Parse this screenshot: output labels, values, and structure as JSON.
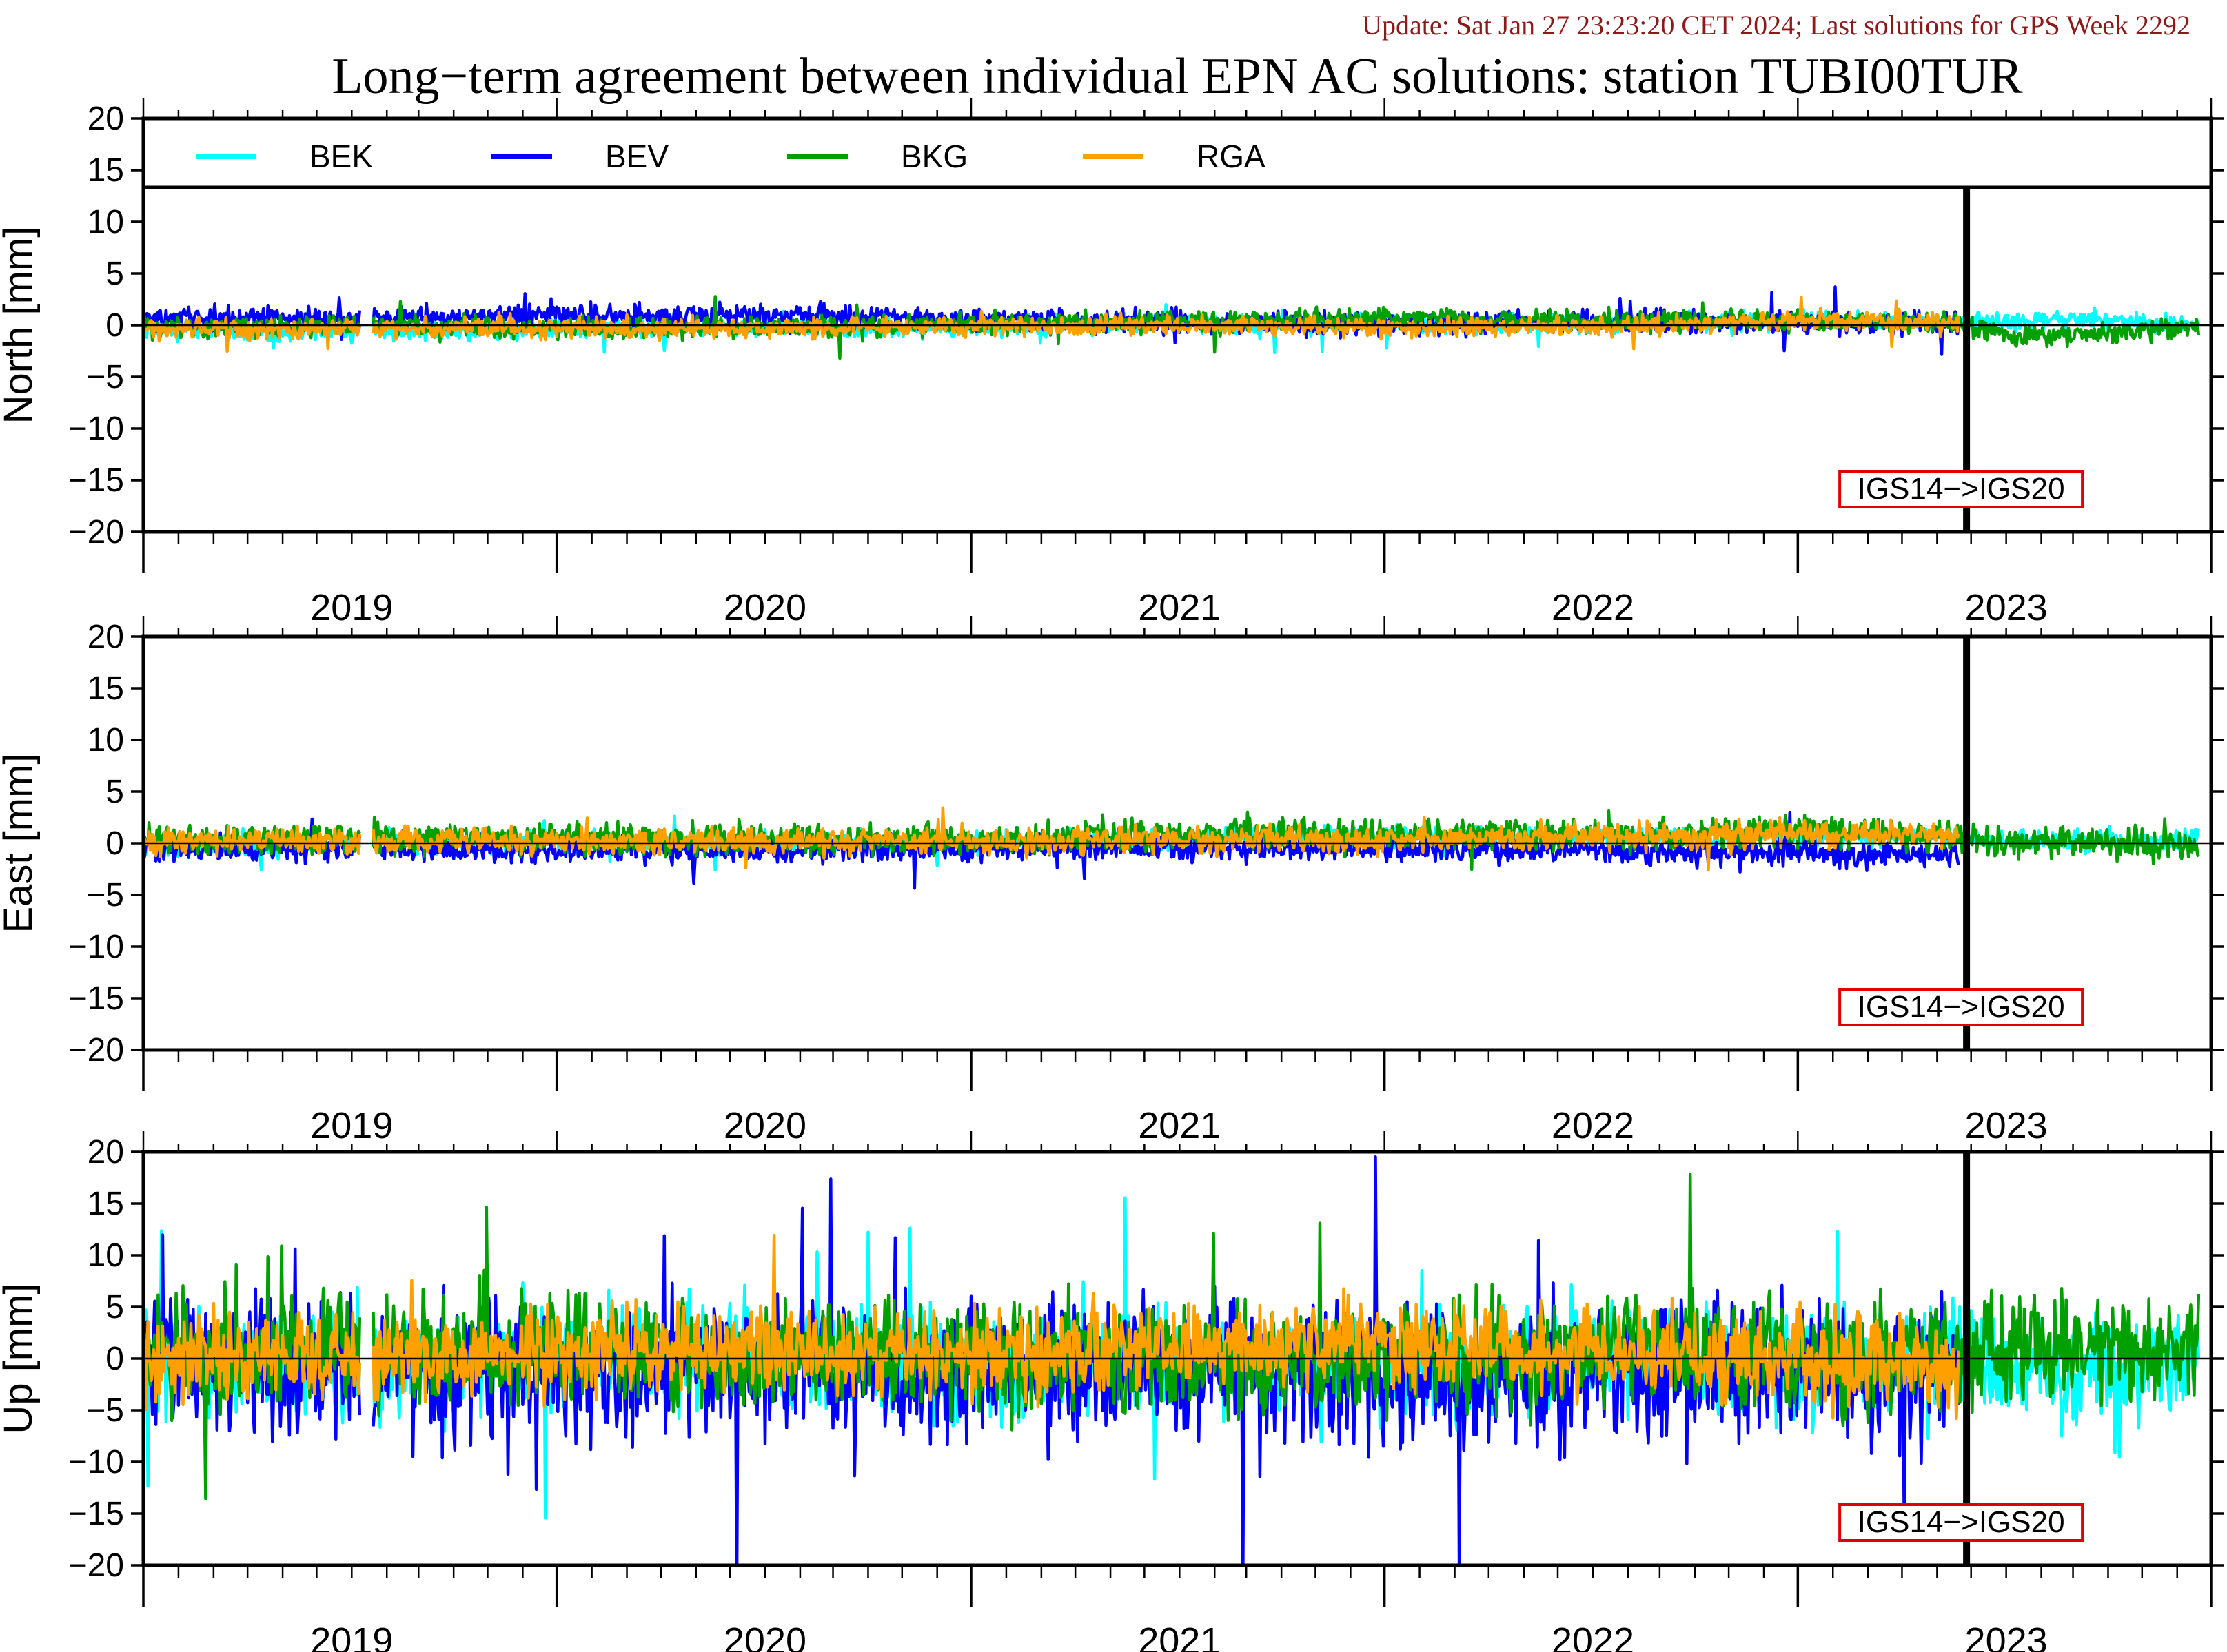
{
  "header": {
    "update_text": "Update: Sat Jan 27 23:23:20 CET 2024; Last solutions for GPS Week 2292"
  },
  "chart_data": {
    "type": "line",
    "title": "Long−term agreement between individual EPN AC solutions: station TUBI00TUR",
    "x_range": [
      "2018-07-01",
      "2023-07-01"
    ],
    "year_labels": [
      "2019",
      "2020",
      "2021",
      "2022",
      "2023"
    ],
    "y_range": [
      -20,
      20
    ],
    "y_ticks": [
      20,
      15,
      10,
      5,
      0,
      -5,
      -10,
      -15,
      -20
    ],
    "y_tick_labels": [
      "20",
      "15",
      "10",
      "5",
      "0",
      "−5",
      "−10",
      "−15",
      "−20"
    ],
    "series_legend": [
      {
        "name": "BEK",
        "color": "#00ffff"
      },
      {
        "name": "BEV",
        "color": "#0000ff"
      },
      {
        "name": "BKG",
        "color": "#00a000"
      },
      {
        "name": "RGA",
        "color": "#ffa000"
      }
    ],
    "reference_change": {
      "date": "2022-11-27",
      "label": "IGS14−>IGS20"
    },
    "panels": [
      {
        "ylabel": "North [mm]",
        "series": [
          {
            "name": "BEK",
            "x": [
              "2018-07-01",
              "2019-01-01",
              "2019-07-01",
              "2020-01-01",
              "2020-07-01",
              "2021-01-01",
              "2021-07-01",
              "2022-01-01",
              "2022-07-01",
              "2022-11-20",
              "2023-01-01",
              "2023-03-01",
              "2023-05-01",
              "2023-06-20"
            ],
            "y": [
              -0.5,
              -0.6,
              -0.4,
              -0.3,
              -0.2,
              0.2,
              0.1,
              0.1,
              0.4,
              0.5,
              0.3,
              0.6,
              0.2,
              0.0
            ]
          },
          {
            "name": "BEV",
            "x": [
              "2018-07-01",
              "2019-01-01",
              "2019-07-01",
              "2020-01-01",
              "2020-07-01",
              "2021-01-01",
              "2021-07-01",
              "2022-01-01",
              "2022-07-01",
              "2022-11-20"
            ],
            "y": [
              0.6,
              0.7,
              0.9,
              1.0,
              0.5,
              0.3,
              0.1,
              0.4,
              0.3,
              0.2
            ]
          },
          {
            "name": "BKG",
            "x": [
              "2018-07-01",
              "2019-01-01",
              "2019-07-01",
              "2020-01-01",
              "2020-07-01",
              "2021-01-01",
              "2021-07-01",
              "2022-01-01",
              "2022-07-01",
              "2022-11-20",
              "2023-01-01",
              "2023-03-01",
              "2023-05-01",
              "2023-06-20"
            ],
            "y": [
              -0.2,
              -0.1,
              -0.3,
              -0.2,
              0.1,
              0.3,
              0.8,
              0.4,
              0.5,
              0.3,
              -0.8,
              -1.0,
              -0.6,
              -0.2
            ]
          },
          {
            "name": "RGA",
            "x": [
              "2018-07-01",
              "2019-01-01",
              "2019-07-01",
              "2020-01-01",
              "2020-07-01",
              "2021-01-01",
              "2021-07-01",
              "2022-01-01",
              "2022-07-01",
              "2022-11-20"
            ],
            "y": [
              -0.4,
              -0.3,
              -0.2,
              -0.3,
              -0.1,
              0.0,
              -0.2,
              -0.2,
              0.4,
              0.3
            ]
          }
        ]
      },
      {
        "ylabel": "East [mm]",
        "series": [
          {
            "name": "BEK",
            "x": [
              "2018-07-01",
              "2019-01-01",
              "2019-07-01",
              "2020-01-01",
              "2020-07-01",
              "2021-01-01",
              "2021-07-01",
              "2022-01-01",
              "2022-07-01",
              "2022-11-20",
              "2023-01-01",
              "2023-03-01",
              "2023-05-01",
              "2023-06-20"
            ],
            "y": [
              -0.2,
              0.1,
              0.2,
              0.1,
              0.0,
              0.4,
              0.8,
              0.6,
              0.9,
              0.5,
              0.2,
              0.3,
              0.1,
              0.4
            ]
          },
          {
            "name": "BEV",
            "x": [
              "2018-07-01",
              "2019-01-01",
              "2019-07-01",
              "2020-01-01",
              "2020-07-01",
              "2021-01-01",
              "2021-07-01",
              "2022-01-01",
              "2022-07-01",
              "2022-11-20"
            ],
            "y": [
              -0.4,
              -0.5,
              -0.6,
              -0.7,
              -0.5,
              -0.3,
              -0.5,
              -0.8,
              -1.0,
              -1.1
            ]
          },
          {
            "name": "BKG",
            "x": [
              "2018-07-01",
              "2019-01-01",
              "2019-07-01",
              "2020-01-01",
              "2020-07-01",
              "2021-01-01",
              "2021-07-01",
              "2022-01-01",
              "2022-07-01",
              "2022-11-20",
              "2023-01-01",
              "2023-03-01",
              "2023-05-01",
              "2023-06-20"
            ],
            "y": [
              0.3,
              0.6,
              0.5,
              0.4,
              0.3,
              0.8,
              0.9,
              0.7,
              1.2,
              0.6,
              -0.2,
              0.1,
              0.0,
              -0.1
            ]
          },
          {
            "name": "RGA",
            "x": [
              "2018-07-01",
              "2019-01-01",
              "2019-07-01",
              "2020-01-01",
              "2020-07-01",
              "2021-01-01",
              "2021-07-01",
              "2022-01-01",
              "2022-07-01",
              "2022-11-20"
            ],
            "y": [
              0.1,
              0.3,
              0.2,
              0.2,
              0.1,
              0.3,
              0.4,
              0.6,
              1.0,
              0.8
            ]
          }
        ]
      },
      {
        "ylabel": "Up [mm]",
        "series": [
          {
            "name": "BEK",
            "x": [
              "2018-07-01",
              "2019-01-01",
              "2019-07-01",
              "2020-01-01",
              "2020-07-01",
              "2021-01-01",
              "2021-07-01",
              "2022-01-01",
              "2022-07-01",
              "2022-11-20",
              "2023-01-01",
              "2023-03-01",
              "2023-05-01",
              "2023-06-20"
            ],
            "y": [
              0.0,
              -1.0,
              0.5,
              1.0,
              -1.5,
              -0.5,
              -1.0,
              0.5,
              -1.0,
              0.5,
              -1.0,
              -1.5,
              -1.0,
              0.0
            ]
          },
          {
            "name": "BEV",
            "x": [
              "2018-07-01",
              "2019-01-01",
              "2019-07-01",
              "2020-01-01",
              "2020-07-01",
              "2021-01-01",
              "2021-07-01",
              "2022-01-01",
              "2022-07-01",
              "2022-11-20"
            ],
            "y": [
              0.5,
              -1.0,
              -1.5,
              -0.5,
              -1.0,
              -0.5,
              -2.0,
              -1.5,
              -1.0,
              -1.5
            ]
          },
          {
            "name": "BKG",
            "x": [
              "2018-07-01",
              "2019-01-01",
              "2019-07-01",
              "2020-01-01",
              "2020-07-01",
              "2021-01-01",
              "2021-07-01",
              "2022-01-01",
              "2022-07-01",
              "2022-11-20",
              "2023-01-01",
              "2023-03-01",
              "2023-05-01",
              "2023-06-20"
            ],
            "y": [
              0.0,
              1.0,
              0.5,
              0.0,
              0.5,
              -0.5,
              0.0,
              1.0,
              0.5,
              0.0,
              1.0,
              1.5,
              0.5,
              0.5
            ]
          },
          {
            "name": "RGA",
            "x": [
              "2018-07-01",
              "2019-01-01",
              "2019-07-01",
              "2020-01-01",
              "2020-07-01",
              "2021-01-01",
              "2021-07-01",
              "2022-01-01",
              "2022-07-01",
              "2022-11-20"
            ],
            "y": [
              0.0,
              0.2,
              0.5,
              1.0,
              0.5,
              1.0,
              1.5,
              0.5,
              0.5,
              -1.0
            ]
          }
        ]
      }
    ]
  }
}
